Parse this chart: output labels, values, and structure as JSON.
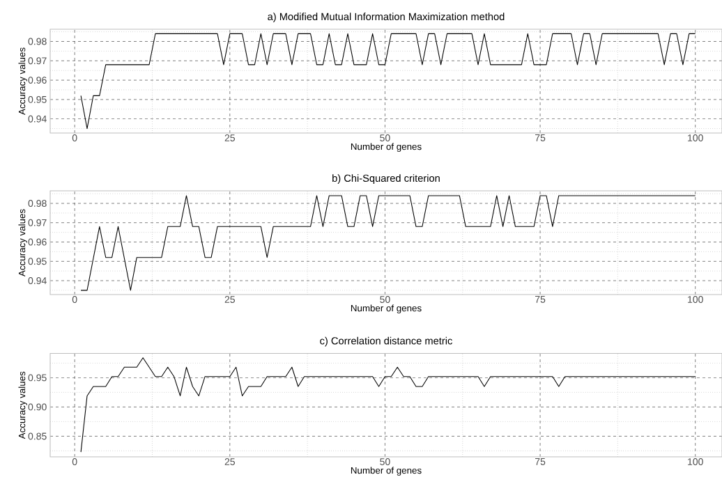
{
  "chart_data": [
    {
      "type": "line",
      "title": "a) Modified Mutual Information Maximization method",
      "xlabel": "Number of genes",
      "ylabel": "Accuracy values",
      "color": "#000000",
      "grid": true,
      "x": [
        1,
        2,
        3,
        4,
        5,
        12,
        13,
        23,
        24,
        25,
        27,
        28,
        29,
        30,
        31,
        32,
        34,
        35,
        36,
        38,
        39,
        40,
        41,
        42,
        43,
        44,
        45,
        47,
        48,
        49,
        50,
        51,
        55,
        56,
        57,
        58,
        59,
        60,
        64,
        65,
        66,
        67,
        72,
        73,
        74,
        76,
        77,
        80,
        81,
        82,
        83,
        84,
        85,
        94,
        95,
        96,
        97,
        98,
        99,
        100
      ],
      "values": [
        0.952,
        0.935,
        0.952,
        0.952,
        0.968,
        0.968,
        0.984,
        0.984,
        0.968,
        0.984,
        0.984,
        0.968,
        0.968,
        0.984,
        0.968,
        0.984,
        0.984,
        0.968,
        0.984,
        0.984,
        0.968,
        0.968,
        0.984,
        0.968,
        0.968,
        0.984,
        0.968,
        0.968,
        0.984,
        0.968,
        0.968,
        0.984,
        0.984,
        0.968,
        0.984,
        0.984,
        0.968,
        0.984,
        0.984,
        0.968,
        0.984,
        0.968,
        0.968,
        0.984,
        0.968,
        0.968,
        0.984,
        0.984,
        0.968,
        0.984,
        0.984,
        0.968,
        0.984,
        0.984,
        0.968,
        0.984,
        0.984,
        0.968,
        0.984,
        0.984
      ],
      "xlim": [
        -3.95,
        104.3
      ],
      "ylim": [
        0.9327,
        0.9863
      ],
      "xticks": [
        0,
        25,
        50,
        75,
        100
      ],
      "yticks": [
        0.94,
        0.95,
        0.96,
        0.97,
        0.98
      ]
    },
    {
      "type": "line",
      "title": "b) Chi-Squared criterion",
      "xlabel": "Number of genes",
      "ylabel": "Accuracy values",
      "color": "#000000",
      "grid": true,
      "x": [
        1,
        2,
        4,
        5,
        6,
        7,
        9,
        10,
        14,
        15,
        17,
        18,
        19,
        20,
        21,
        22,
        23,
        30,
        31,
        32,
        38,
        39,
        40,
        41,
        43,
        44,
        45,
        46,
        47,
        48,
        49,
        54,
        55,
        56,
        57,
        62,
        63,
        67,
        68,
        69,
        70,
        71,
        74,
        75,
        76,
        77,
        78,
        100
      ],
      "values": [
        0.935,
        0.935,
        0.968,
        0.952,
        0.952,
        0.968,
        0.935,
        0.952,
        0.952,
        0.968,
        0.968,
        0.984,
        0.968,
        0.968,
        0.952,
        0.952,
        0.968,
        0.968,
        0.952,
        0.968,
        0.968,
        0.984,
        0.968,
        0.984,
        0.984,
        0.968,
        0.968,
        0.984,
        0.984,
        0.968,
        0.984,
        0.984,
        0.968,
        0.968,
        0.984,
        0.984,
        0.968,
        0.968,
        0.984,
        0.968,
        0.984,
        0.968,
        0.968,
        0.984,
        0.984,
        0.968,
        0.984,
        0.984
      ],
      "xlim": [
        -3.95,
        104.3
      ],
      "ylim": [
        0.9328,
        0.9865
      ],
      "xticks": [
        0,
        25,
        50,
        75,
        100
      ],
      "yticks": [
        0.94,
        0.95,
        0.96,
        0.97,
        0.98
      ]
    },
    {
      "type": "line",
      "title": "c) Correlation distance metric",
      "xlabel": "Number of genes",
      "ylabel": "Accuracy values",
      "color": "#000000",
      "grid": true,
      "x": [
        1,
        2,
        3,
        5,
        6,
        7,
        8,
        10,
        11,
        13,
        14,
        15,
        16,
        17,
        18,
        19,
        20,
        21,
        25,
        26,
        27,
        28,
        30,
        31,
        34,
        35,
        36,
        37,
        48,
        49,
        50,
        51,
        52,
        53,
        54,
        55,
        56,
        57,
        65,
        66,
        67,
        77,
        78,
        79,
        100
      ],
      "values": [
        0.823,
        0.919,
        0.935,
        0.935,
        0.952,
        0.952,
        0.968,
        0.968,
        0.984,
        0.952,
        0.952,
        0.968,
        0.952,
        0.919,
        0.968,
        0.935,
        0.919,
        0.952,
        0.952,
        0.968,
        0.919,
        0.935,
        0.935,
        0.952,
        0.952,
        0.968,
        0.935,
        0.952,
        0.952,
        0.935,
        0.952,
        0.952,
        0.968,
        0.952,
        0.952,
        0.935,
        0.935,
        0.952,
        0.952,
        0.935,
        0.952,
        0.952,
        0.935,
        0.952,
        0.952
      ],
      "xlim": [
        -3.95,
        104.3
      ],
      "ylim": [
        0.8148,
        0.9915
      ],
      "xticks": [
        0,
        25,
        50,
        75,
        100
      ],
      "yticks": [
        0.85,
        {
          "value": 0.9,
          "label": "0.90"
        },
        0.95
      ]
    }
  ]
}
